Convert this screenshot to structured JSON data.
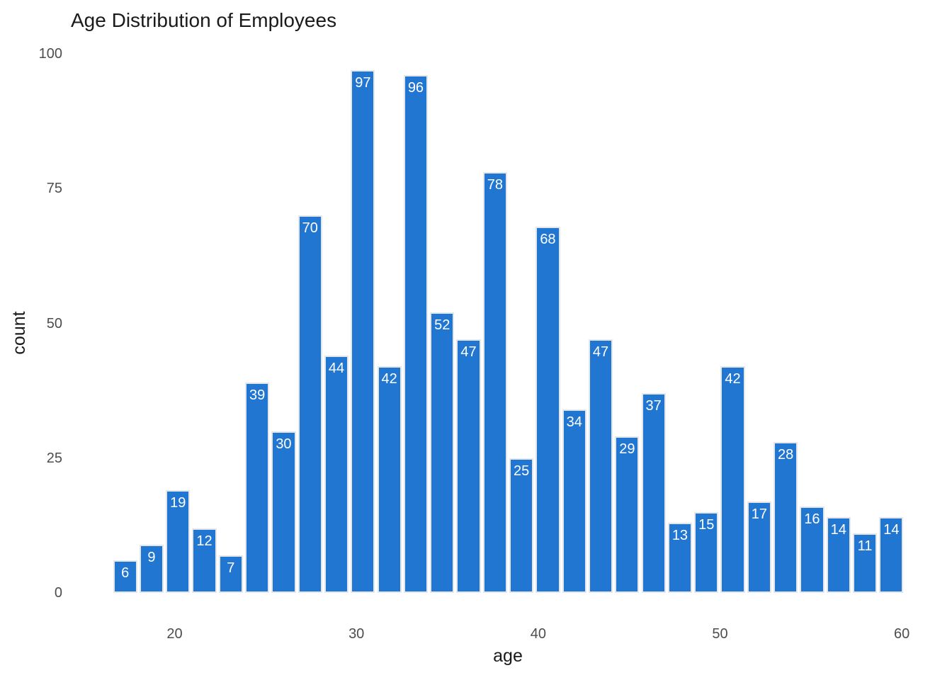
{
  "chart_data": {
    "type": "bar",
    "subtype": "histogram",
    "title": "Age Distribution of Employees",
    "xlabel": "age",
    "ylabel": "count",
    "values": [
      6,
      9,
      19,
      12,
      7,
      39,
      30,
      70,
      44,
      97,
      42,
      96,
      52,
      47,
      78,
      25,
      68,
      34,
      47,
      29,
      37,
      13,
      15,
      42,
      17,
      28,
      16,
      14,
      11,
      14
    ],
    "bar_value_labels_shown": true,
    "bins": 30,
    "bin_width": 1.45,
    "x_axis": {
      "min": 16.55,
      "max": 60.15,
      "ticks": [
        20,
        30,
        40,
        50,
        60
      ]
    },
    "y_axis": {
      "min": 0,
      "max": 100,
      "ticks": [
        0,
        25,
        50,
        75,
        100
      ]
    },
    "grid": "off",
    "legend": "none",
    "colors": {
      "bar_fill": "#2176d2",
      "bar_border": "#e3e6ea",
      "bar_label": "#ffffff",
      "tick_label": "#4d4d4d",
      "title": "#1a1a1a",
      "axis_title": "#1a1a1a",
      "background": "#ffffff"
    }
  }
}
